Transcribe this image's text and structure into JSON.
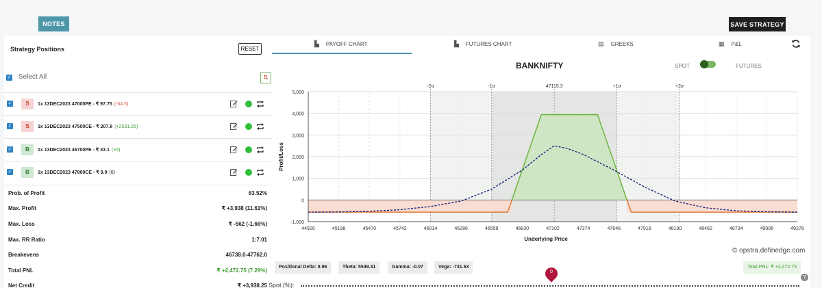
{
  "header": {
    "notes_label": "NOTES",
    "save_label": "SAVE STRATEGY"
  },
  "positions_panel": {
    "title": "Strategy Positions",
    "reset_label": "RESET",
    "select_all_label": "Select All",
    "positions": [
      {
        "side": "S",
        "desc": "1x  13DEC2023  47000PE  - ₹ 97.75",
        "change": "(-64.5)",
        "change_color": "#d9534f"
      },
      {
        "side": "S",
        "desc": "1x  13DEC2023  47500CE  - ₹ 207.8",
        "change": "(+2531.25)",
        "change_color": "#3b9b2f"
      },
      {
        "side": "B",
        "desc": "1x  13DEC2023  46700PE  - ₹ 33.1",
        "change": "(+6)",
        "change_color": "#3b9b2f"
      },
      {
        "side": "B",
        "desc": "1x  13DEC2023  47800CE  - ₹ 9.9",
        "change": "(0)",
        "change_color": "#222222"
      }
    ],
    "metrics": [
      {
        "label": "Prob. of Profit",
        "value": "63.52%",
        "color": "#222222"
      },
      {
        "label": "Max. Profit",
        "value": "₹ +3,938 (11.61%)",
        "color": "#222222"
      },
      {
        "label": "Max. Loss",
        "value": "₹ -562 (-1.66%)",
        "color": "#222222"
      },
      {
        "label": "Max. RR Ratio",
        "value": "1:7.01",
        "color": "#222222"
      },
      {
        "label": "Breakevens",
        "value": "46738.0-47762.0",
        "color": "#222222"
      },
      {
        "label": "Total PNL",
        "value": "₹ +2,472.75 (7.29%)",
        "color": "#3b9b2f"
      },
      {
        "label": "Net Credit",
        "value": "₹ +3,938.25",
        "color": "#222222"
      }
    ]
  },
  "tabs": [
    {
      "label": "PAYOFF CHART",
      "icon": "line-chart-icon",
      "active": true
    },
    {
      "label": "FUTURES CHART",
      "icon": "area-chart-icon",
      "active": false
    },
    {
      "label": "GREEKS",
      "icon": "table-icon",
      "active": false
    },
    {
      "label": "P&L",
      "icon": "grid-icon",
      "active": false
    }
  ],
  "toggle": {
    "spot_label": "SPOT",
    "futures_label": "FUTURES"
  },
  "watermark": "© opstra.definedge.com",
  "greeks": {
    "delta": "Positional Delta: 8.96",
    "theta": "Theta: 5549.31",
    "gamma": "Gamma: -0.07",
    "vega": "Vega: -731.63",
    "total_pnl": "Total PNL: ₹ +2,472.75"
  },
  "slider": {
    "label": "Spot (%):",
    "value": "0"
  },
  "colors": {
    "accent": "#4e96a9",
    "profit": "#3b9b2f",
    "loss": "#d9534f",
    "payoff_line": "#6db33f",
    "loss_fill": "#f9ddd2",
    "profit_fill": "#cfe6c4",
    "curve": "#1a237e"
  },
  "chart_data": {
    "type": "line",
    "title": "BANKNIFTY",
    "xlabel": "Underlying Price",
    "ylabel": "Profit/Loss",
    "xlim": [
      44926,
      49278
    ],
    "ylim": [
      -1000,
      5000
    ],
    "x_ticks": [
      44926,
      45198,
      45470,
      45742,
      46014,
      46286,
      46558,
      46830,
      47102,
      47374,
      47646,
      47918,
      48190,
      48462,
      48734,
      49006,
      49278
    ],
    "y_ticks": [
      -1000,
      0,
      1000,
      2000,
      3000,
      4000,
      5000
    ],
    "y_tick_labels": [
      "-1,000",
      "0",
      "1,000",
      "2,000",
      "3,000",
      "4,000",
      "5,000"
    ],
    "sigma_levels": [
      {
        "label": "-2σ",
        "x": 46014
      },
      {
        "label": "-1σ",
        "x": 46558
      },
      {
        "label": "47115.3",
        "x": 47115.3
      },
      {
        "label": "+1σ",
        "x": 47672
      },
      {
        "label": "+2σ",
        "x": 48230
      }
    ],
    "series": [
      {
        "style": "solid",
        "x": [
          44926,
          46700,
          47000,
          47500,
          47800,
          49278
        ],
        "y": [
          -562,
          -562,
          3938,
          3938,
          -562,
          -562
        ]
      },
      {
        "style": "dashed",
        "x": [
          44926,
          45200,
          45470,
          45742,
          46014,
          46286,
          46558,
          46830,
          47000,
          47115,
          47230,
          47374,
          47646,
          47918,
          48190,
          48462,
          48734,
          49006,
          49278
        ],
        "y": [
          -562,
          -550,
          -520,
          -450,
          -300,
          -50,
          500,
          1380,
          2100,
          2500,
          2380,
          2100,
          1380,
          600,
          -50,
          -360,
          -500,
          -545,
          -560
        ]
      }
    ],
    "grid": true
  }
}
